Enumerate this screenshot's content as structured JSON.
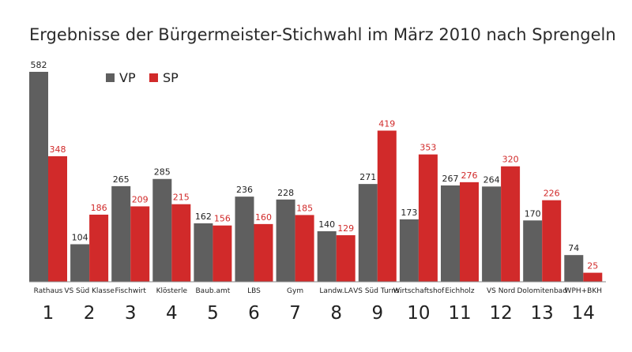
{
  "chart_data": {
    "type": "bar",
    "title": "Ergebnisse der Bürgermeister-Stichwahl im März 2010 nach Sprengeln",
    "categories": [
      "Rathaus",
      "VS Süd Klasse",
      "Fischwirt",
      "Klösterle",
      "Baub.amt",
      "LBS",
      "Gym",
      "Landw.LA",
      "VS Süd Turns.",
      "Wirtschaftshof",
      "Eichholz",
      "VS Nord",
      "Dolomitenbad",
      "WPH+BKH"
    ],
    "numbers": [
      "1",
      "2",
      "3",
      "4",
      "5",
      "6",
      "7",
      "8",
      "9",
      "10",
      "11",
      "12",
      "13",
      "14"
    ],
    "series": [
      {
        "name": "VP",
        "color": "#5f5f5f",
        "label_color": "#222222",
        "values": [
          582,
          104,
          265,
          285,
          162,
          236,
          228,
          140,
          271,
          173,
          267,
          264,
          170,
          74
        ]
      },
      {
        "name": "SP",
        "color": "#d12a2a",
        "label_color": "#d12a2a",
        "values": [
          348,
          186,
          209,
          215,
          156,
          160,
          185,
          129,
          419,
          353,
          276,
          320,
          226,
          25
        ]
      }
    ],
    "ylim": [
      0,
      600
    ],
    "grid": false,
    "legend": "top-left"
  }
}
